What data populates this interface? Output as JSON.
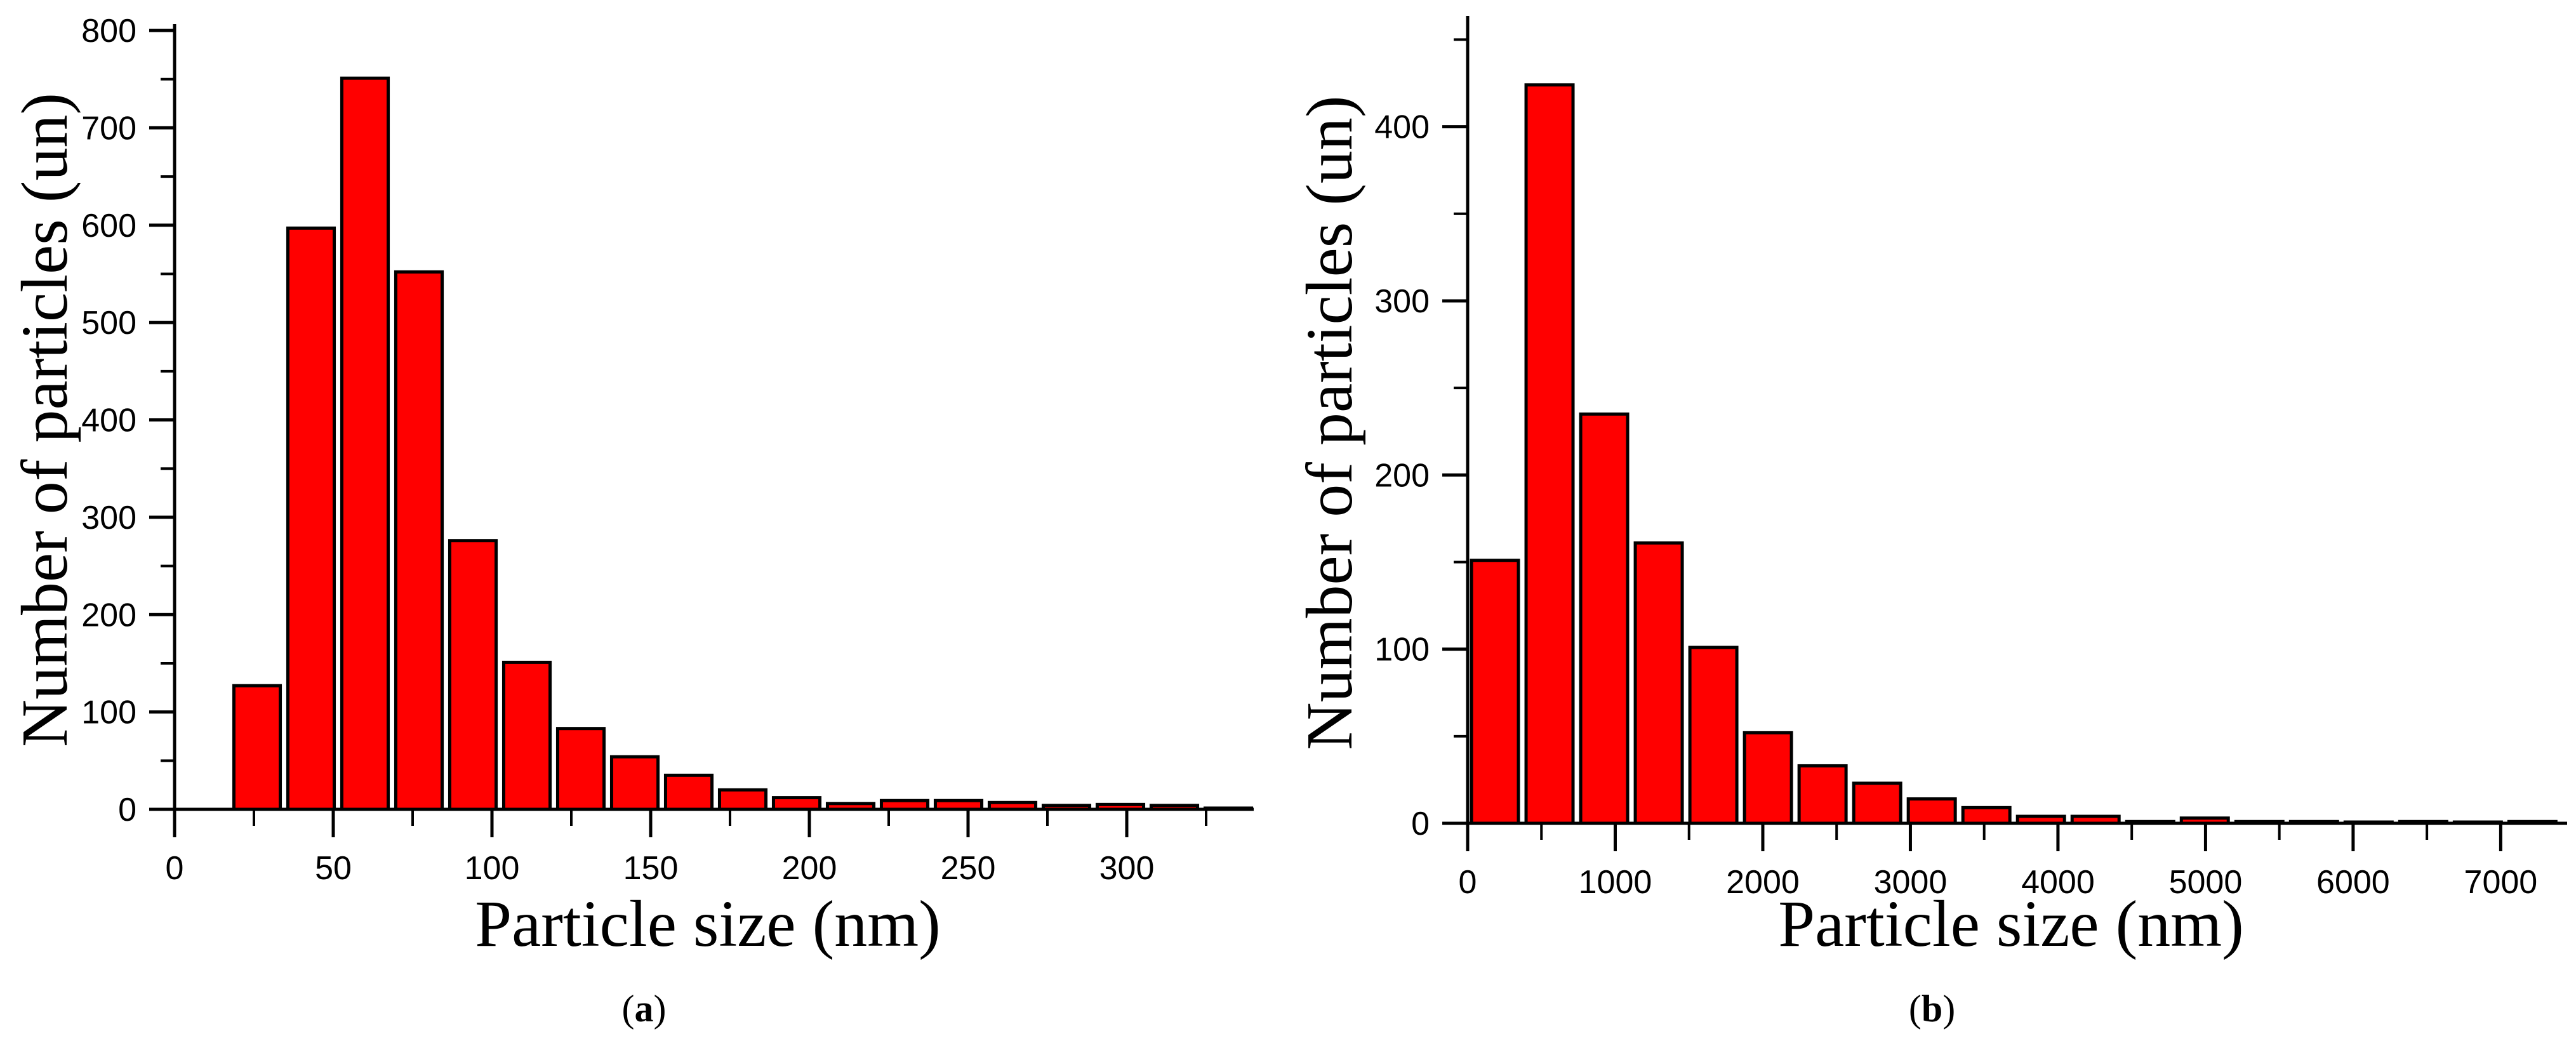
{
  "figure": {
    "panels": [
      {
        "caption_letter": "a"
      },
      {
        "caption_letter": "b"
      }
    ]
  },
  "colors": {
    "bar_fill": "#ff0000",
    "bar_stroke": "#000000",
    "axis": "#000000",
    "background": "#ffffff"
  },
  "chart_data": [
    {
      "type": "bar",
      "panel": "(a)",
      "title": "",
      "xlabel": "Particle size (nm)",
      "ylabel": "Number of particles (un)",
      "x": [
        26,
        43,
        60,
        77,
        94,
        111,
        128,
        145,
        162,
        179,
        196,
        213,
        230,
        247,
        264,
        281,
        298,
        315,
        332
      ],
      "values": [
        127,
        597,
        751,
        552,
        276,
        151,
        83,
        54,
        35,
        20,
        12,
        6,
        9,
        9,
        7,
        4,
        5,
        4,
        1
      ],
      "bin_width": 17,
      "xlim": [
        0,
        340
      ],
      "ylim": [
        0,
        800
      ],
      "xticks": [
        0,
        50,
        100,
        150,
        200,
        250,
        300
      ],
      "yticks": [
        0,
        100,
        200,
        300,
        400,
        500,
        600,
        700,
        800
      ],
      "grid": false,
      "legend": null
    },
    {
      "type": "bar",
      "panel": "(b)",
      "title": "",
      "xlabel": "Particle size (nm)",
      "ylabel": "Number of particles (un)",
      "x": [
        185,
        555,
        925,
        1295,
        1665,
        2035,
        2405,
        2775,
        3145,
        3515,
        3885,
        4255,
        4625,
        4995,
        5365,
        5735,
        6105,
        6475,
        6845,
        7215
      ],
      "values": [
        151,
        424,
        235,
        161,
        101,
        52,
        33,
        23,
        14,
        9,
        4,
        4,
        1,
        3,
        1,
        1,
        0,
        1,
        0,
        1
      ],
      "bin_width": 370,
      "xlim": [
        0,
        7450
      ],
      "ylim": [
        0,
        460
      ],
      "xticks": [
        0,
        1000,
        2000,
        3000,
        4000,
        5000,
        6000,
        7000
      ],
      "yticks": [
        0,
        100,
        200,
        300,
        400
      ],
      "grid": false,
      "legend": null
    }
  ]
}
